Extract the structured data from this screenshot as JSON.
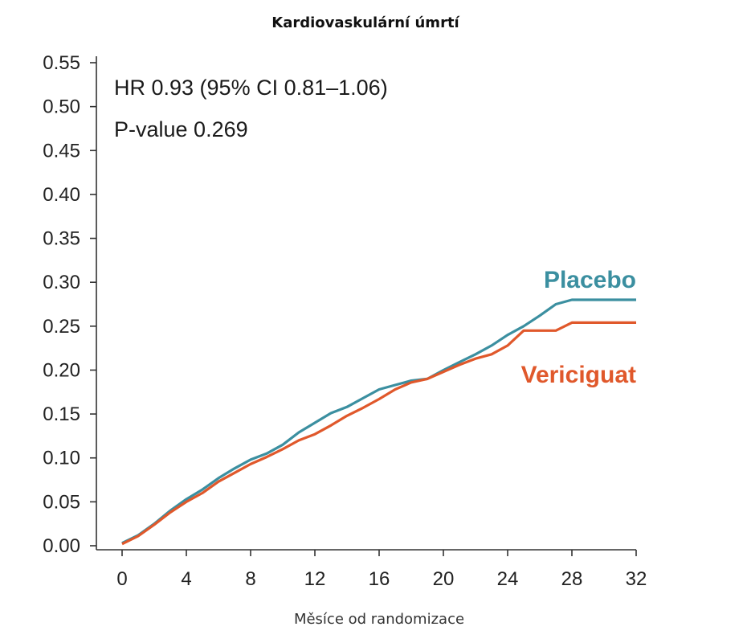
{
  "chart_data": {
    "type": "line",
    "title": "Kardiovaskulární úmrtí",
    "xlabel": "Měsíce od randomizace",
    "ylabel": "",
    "xlim": [
      0,
      32
    ],
    "ylim": [
      0,
      0.55
    ],
    "x_ticks": [
      "0",
      "4",
      "8",
      "12",
      "16",
      "20",
      "24",
      "28",
      "32"
    ],
    "y_ticks": [
      "0.00",
      "0.05",
      "0.10",
      "0.15",
      "0.20",
      "0.25",
      "0.30",
      "0.35",
      "0.40",
      "0.45",
      "0.50",
      "0.55"
    ],
    "grid": false,
    "annotations": [
      "HR 0.93 (95% CI 0.81–1.06)",
      "P-value 0.269"
    ],
    "series": [
      {
        "name": "Placebo",
        "color": "#3b8fa0",
        "x": [
          0,
          1,
          2,
          3,
          4,
          5,
          6,
          7,
          8,
          9,
          10,
          11,
          12,
          13,
          14,
          15,
          16,
          17,
          18,
          19,
          20,
          21,
          22,
          23,
          24,
          25,
          26,
          27,
          28,
          29,
          30,
          31,
          32
        ],
        "y": [
          0.003,
          0.012,
          0.025,
          0.04,
          0.053,
          0.064,
          0.077,
          0.088,
          0.098,
          0.105,
          0.115,
          0.129,
          0.14,
          0.151,
          0.158,
          0.168,
          0.178,
          0.183,
          0.188,
          0.19,
          0.2,
          0.209,
          0.218,
          0.228,
          0.24,
          0.25,
          0.262,
          0.275,
          0.28,
          0.28,
          0.28,
          0.28,
          0.28
        ]
      },
      {
        "name": "Vericiguat",
        "color": "#e0582b",
        "x": [
          0,
          1,
          2,
          3,
          4,
          5,
          6,
          7,
          8,
          9,
          10,
          11,
          12,
          13,
          14,
          15,
          16,
          17,
          18,
          19,
          20,
          21,
          22,
          23,
          24,
          25,
          26,
          27,
          28,
          29,
          30,
          31,
          32
        ],
        "y": [
          0.002,
          0.011,
          0.024,
          0.038,
          0.05,
          0.06,
          0.073,
          0.083,
          0.093,
          0.101,
          0.11,
          0.12,
          0.127,
          0.137,
          0.148,
          0.157,
          0.167,
          0.178,
          0.186,
          0.19,
          0.198,
          0.206,
          0.213,
          0.218,
          0.228,
          0.245,
          0.245,
          0.245,
          0.254,
          0.254,
          0.254,
          0.254,
          0.254
        ]
      }
    ]
  }
}
